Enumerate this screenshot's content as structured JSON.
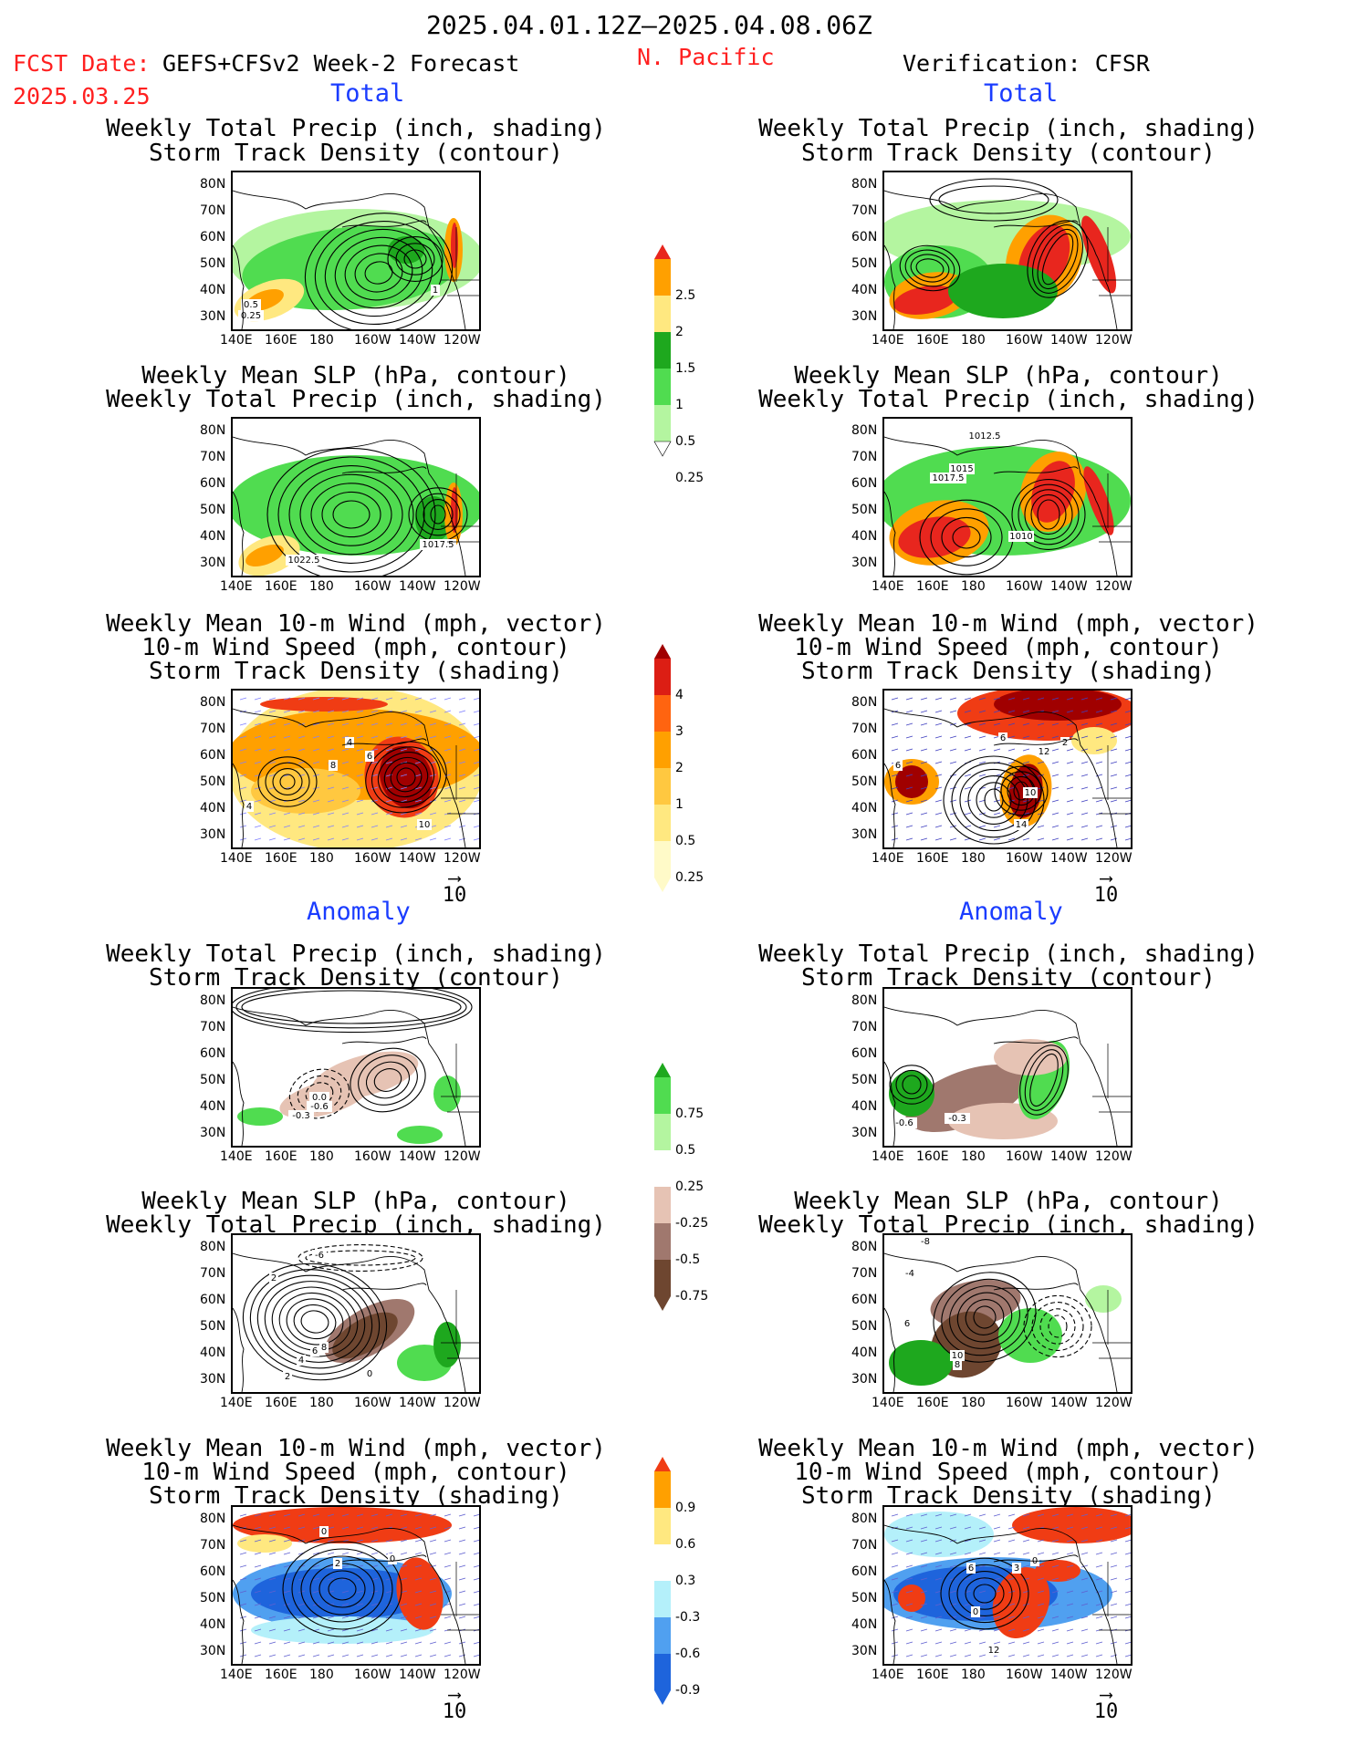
{
  "header": {
    "date_range": "2025.04.01.12Z–2025.04.08.06Z",
    "fcst_label": "FCST Date:",
    "model": "GEFS+CFSv2 Week-2 Forecast",
    "fcst_date": "2025.03.25",
    "region": "N. Pacific",
    "verification": "Verification: CFSR"
  },
  "sections": {
    "total": "Total",
    "anomaly": "Anomaly"
  },
  "titles": {
    "precip_storm": [
      "Weekly Total Precip (inch, shading)",
      "Storm Track Density (contour)"
    ],
    "slp_precip": [
      "Weekly Mean SLP (hPa, contour)",
      "Weekly Total Precip (inch, shading)"
    ],
    "wind_storm": [
      "Weekly Mean 10-m Wind (mph, vector)",
      "10-m Wind Speed (mph, contour)",
      "Storm Track Density (shading)"
    ]
  },
  "axes": {
    "lat": [
      "80N",
      "70N",
      "60N",
      "50N",
      "40N",
      "30N"
    ],
    "lon": [
      "140E",
      "160E",
      "180",
      "160W",
      "140W",
      "120W"
    ]
  },
  "vector_key": "10",
  "colorbars": {
    "precip_total": {
      "labels": [
        "2.5",
        "2",
        "1.5",
        "1",
        "0.5",
        "0.25"
      ],
      "colors": [
        "#e8261e",
        "#ffa000",
        "#ffe880",
        "#1ea81e",
        "#50dc50",
        "#b4f5a0"
      ]
    },
    "storm_total": {
      "labels": [
        "4",
        "3",
        "2",
        "1",
        "0.5",
        "0.25"
      ],
      "colors": [
        "#a00000",
        "#dc1e14",
        "#ff6410",
        "#ffa000",
        "#ffc840",
        "#ffe880",
        "#fffac8"
      ]
    },
    "precip_anom": {
      "labels": [
        "0.75",
        "0.5",
        "0.25",
        "-0.25",
        "-0.5",
        "-0.75"
      ],
      "colors": [
        "#1ea81e",
        "#50dc50",
        "#b4f5a0",
        "#ffffff",
        "#e6c3b4",
        "#a0786e",
        "#6e4630"
      ]
    },
    "storm_anom": {
      "labels": [
        "0.9",
        "0.6",
        "0.3",
        "-0.3",
        "-0.6",
        "-0.9"
      ],
      "colors": [
        "#f03c14",
        "#ffa000",
        "#ffe880",
        "#ffffff",
        "#b4f0fa",
        "#50a0f0",
        "#1e64dc"
      ]
    }
  },
  "contour_labels": {
    "r1l": [
      "0.5",
      "0.25",
      "1"
    ],
    "r2l": [
      "1022.5",
      "1017.5"
    ],
    "r2r": [
      "1012.5",
      "1015",
      "1017.5",
      "1010"
    ],
    "r3l": [
      "4",
      "8",
      "6",
      "10",
      "4"
    ],
    "r3r": [
      "6",
      "2",
      "12",
      "10",
      "14",
      "6"
    ],
    "r4l": [
      "0.0",
      "-0.6",
      "-0.3"
    ],
    "r4r": [
      "-0.6",
      "-0.3"
    ],
    "r5l": [
      "-6",
      "2",
      "4",
      "6",
      "8",
      "2",
      "0"
    ],
    "r5r": [
      "-8",
      "-4",
      "6",
      "10",
      "8"
    ],
    "r6l": [
      "0",
      "2",
      "0"
    ],
    "r6r": [
      "6",
      "3",
      "0",
      "0",
      "12"
    ]
  }
}
